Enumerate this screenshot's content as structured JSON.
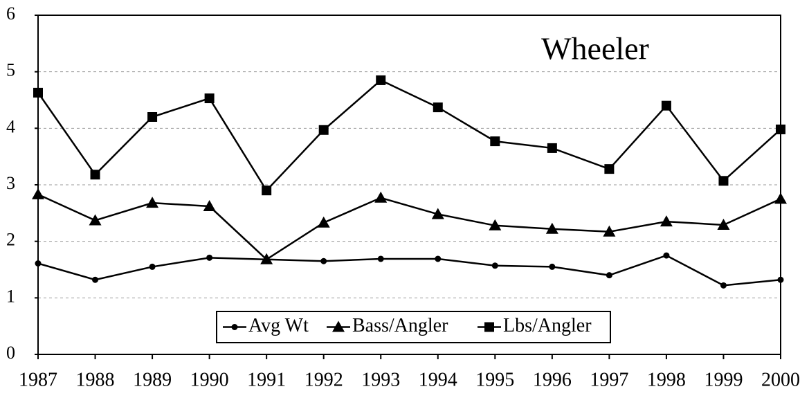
{
  "chart_data": {
    "type": "line",
    "title": "Wheeler",
    "x": [
      1987,
      1988,
      1989,
      1990,
      1991,
      1992,
      1993,
      1994,
      1995,
      1996,
      1997,
      1998,
      1999,
      2000
    ],
    "xlim": [
      1987,
      2000
    ],
    "xticks": [
      1987,
      1988,
      1989,
      1990,
      1991,
      1992,
      1993,
      1994,
      1995,
      1996,
      1997,
      1998,
      1999,
      2000
    ],
    "ylim": [
      0,
      6
    ],
    "yticks": [
      0,
      1,
      2,
      3,
      4,
      5,
      6
    ],
    "grid": true,
    "legend": "lower center",
    "series": [
      {
        "name": "Avg Wt",
        "color": "#000000",
        "marker": "circle",
        "values": [
          1.61,
          1.32,
          1.55,
          1.71,
          1.68,
          1.65,
          1.69,
          1.69,
          1.57,
          1.55,
          1.4,
          1.75,
          1.22,
          1.32
        ]
      },
      {
        "name": "Bass/Angler",
        "color": "#000000",
        "marker": "triangle",
        "values": [
          2.83,
          2.37,
          2.68,
          2.62,
          1.68,
          2.33,
          2.77,
          2.48,
          2.28,
          2.22,
          2.17,
          2.35,
          2.29,
          2.75
        ]
      },
      {
        "name": "Lbs/Angler",
        "color": "#000000",
        "marker": "square",
        "values": [
          4.63,
          3.18,
          4.2,
          4.53,
          2.9,
          3.97,
          4.85,
          4.37,
          3.77,
          3.65,
          3.28,
          4.4,
          3.07,
          3.98
        ]
      }
    ]
  }
}
